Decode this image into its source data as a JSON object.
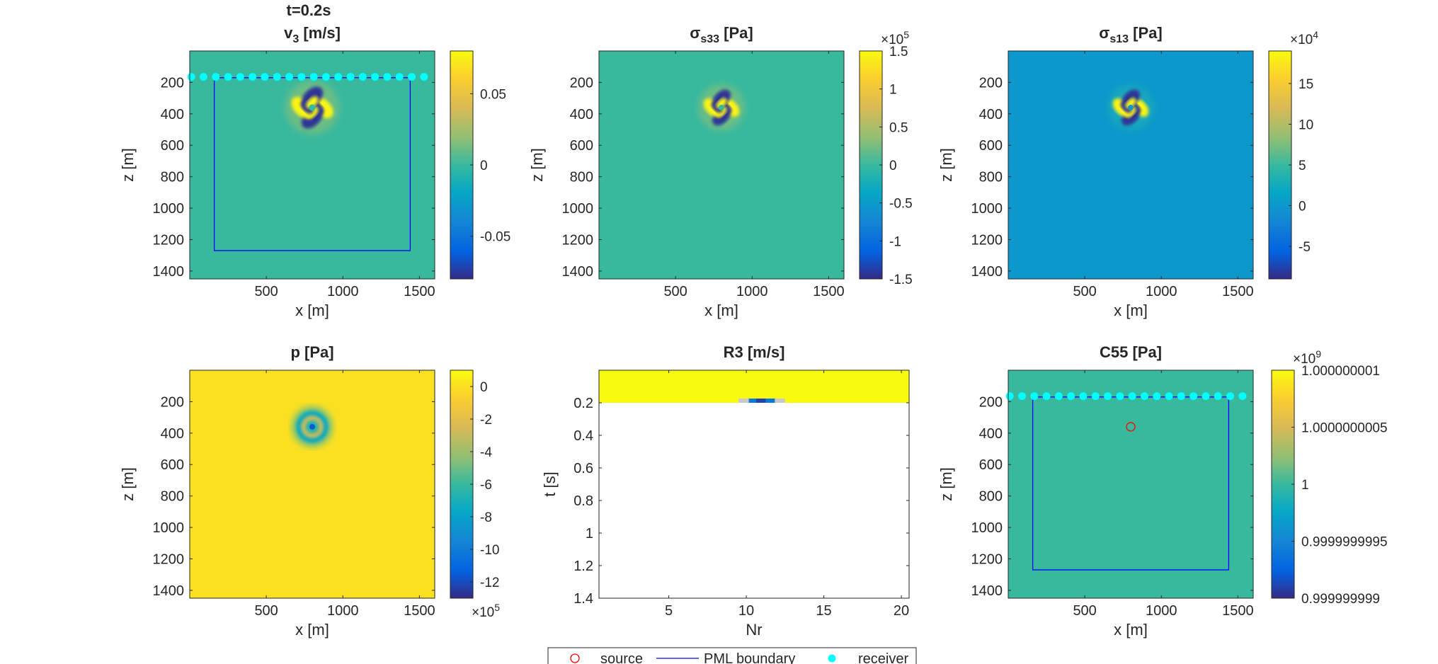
{
  "figure": {
    "time_label": "t=0.2s",
    "legend": {
      "items": [
        {
          "label": "source",
          "marker": "circle-open",
          "color": "#ff0000"
        },
        {
          "label": "PML boundary",
          "marker": "line",
          "color": "#0000ff"
        },
        {
          "label": "receiver",
          "marker": "circle-filled",
          "color": "#00ffff"
        }
      ]
    },
    "colormap": "parula",
    "colors": {
      "pml": "#0000ff",
      "receiver": "#00ffff",
      "source": "#ff0000"
    }
  },
  "chart_data": [
    {
      "type": "heatmap",
      "title_main": "v",
      "title_sub": "3",
      "title_rest": " [m/s]",
      "xlabel": "x [m]",
      "ylabel": "z [m]",
      "xlim": [
        0,
        1600
      ],
      "ylim": [
        0,
        1450
      ],
      "y_reversed": true,
      "xticks": [
        500,
        1000,
        1500
      ],
      "yticks": [
        200,
        400,
        600,
        800,
        1000,
        1200,
        1400
      ],
      "background_value": 0,
      "clim": [
        -0.08,
        0.08
      ],
      "colorbar_ticks": [
        {
          "value": 0.05,
          "label": "0.05"
        },
        {
          "value": 0,
          "label": "0"
        },
        {
          "value": -0.05,
          "label": "-0.05"
        }
      ],
      "colorbar_exponent": "",
      "pml_box": {
        "x": [
          160,
          1440
        ],
        "z": [
          170,
          1270
        ]
      },
      "receivers": {
        "z": 165,
        "x": [
          10,
          90,
          170,
          250,
          330,
          410,
          490,
          570,
          650,
          730,
          810,
          890,
          970,
          1050,
          1130,
          1210,
          1290,
          1370,
          1450,
          1530
        ]
      },
      "source": null,
      "wavefield": {
        "center": [
          800,
          360
        ],
        "pattern": "quadrupole",
        "max_radius": 175
      }
    },
    {
      "type": "heatmap",
      "title_main": "σ",
      "title_sub": "s33",
      "title_rest": " [Pa]",
      "xlabel": "x [m]",
      "ylabel": "z [m]",
      "xlim": [
        0,
        1600
      ],
      "ylim": [
        0,
        1450
      ],
      "y_reversed": true,
      "xticks": [
        500,
        1000,
        1500
      ],
      "yticks": [
        200,
        400,
        600,
        800,
        1000,
        1200,
        1400
      ],
      "background_value": 0,
      "clim": [
        -1.5,
        1.5
      ],
      "colorbar_ticks": [
        {
          "value": 1.5,
          "label": "1.5"
        },
        {
          "value": 1,
          "label": "1"
        },
        {
          "value": 0.5,
          "label": "0.5"
        },
        {
          "value": 0,
          "label": "0"
        },
        {
          "value": -0.5,
          "label": "-0.5"
        },
        {
          "value": -1,
          "label": "-1"
        },
        {
          "value": -1.5,
          "label": "-1.5"
        }
      ],
      "colorbar_exponent": "5",
      "pml_box": null,
      "receivers": null,
      "source": null,
      "wavefield": {
        "center": [
          800,
          360
        ],
        "pattern": "quadrupole",
        "max_radius": 150
      }
    },
    {
      "type": "heatmap",
      "title_main": "σ",
      "title_sub": "s13",
      "title_rest": " [Pa]",
      "xlabel": "x [m]",
      "ylabel": "z [m]",
      "xlim": [
        0,
        1600
      ],
      "ylim": [
        0,
        1450
      ],
      "y_reversed": true,
      "xticks": [
        500,
        1000,
        1500
      ],
      "yticks": [
        200,
        400,
        600,
        800,
        1000,
        1200,
        1400
      ],
      "background_value": 0,
      "clim": [
        -9,
        19
      ],
      "colorbar_ticks": [
        {
          "value": 15,
          "label": "15"
        },
        {
          "value": 10,
          "label": "10"
        },
        {
          "value": 5,
          "label": "5"
        },
        {
          "value": 0,
          "label": "0"
        },
        {
          "value": -5,
          "label": "-5"
        }
      ],
      "colorbar_exponent": "4",
      "pml_box": null,
      "receivers": null,
      "source": null,
      "wavefield": {
        "center": [
          800,
          360
        ],
        "pattern": "quadrupole",
        "max_radius": 150
      }
    },
    {
      "type": "heatmap",
      "title_main": "p [Pa]",
      "title_sub": "",
      "title_rest": "",
      "xlabel": "x [m]",
      "ylabel": "z [m]",
      "xlim": [
        0,
        1600
      ],
      "ylim": [
        0,
        1450
      ],
      "y_reversed": true,
      "xticks": [
        500,
        1000,
        1500
      ],
      "yticks": [
        200,
        400,
        600,
        800,
        1000,
        1200,
        1400
      ],
      "background_value": 0,
      "clim": [
        -13,
        1
      ],
      "colorbar_ticks": [
        {
          "value": 0,
          "label": "0"
        },
        {
          "value": -2,
          "label": "-2"
        },
        {
          "value": -4,
          "label": "-4"
        },
        {
          "value": -6,
          "label": "-6"
        },
        {
          "value": -8,
          "label": "-8"
        },
        {
          "value": -10,
          "label": "-10"
        },
        {
          "value": -12,
          "label": "-12"
        }
      ],
      "colorbar_exponent": "5",
      "colorbar_exponent_position": "bottom",
      "pml_box": null,
      "receivers": null,
      "source": null,
      "wavefield": {
        "center": [
          800,
          360
        ],
        "pattern": "rings",
        "max_radius": 130
      }
    },
    {
      "type": "heatmap",
      "title_main": "R3 [m/s]",
      "title_sub": "",
      "title_rest": "",
      "xlabel": "Nr",
      "ylabel": "t [s]",
      "xlim": [
        0.5,
        20.5
      ],
      "ylim": [
        0,
        1.4
      ],
      "y_reversed": true,
      "xticks": [
        5,
        10,
        15,
        20
      ],
      "yticks": [
        0.2,
        0.4,
        0.6,
        0.8,
        1,
        1.2,
        1.4
      ],
      "ytick_labels": [
        "0.2",
        "0.4",
        "0.6",
        "0.8",
        "1",
        "1.2",
        "1.4"
      ],
      "recorded_until": 0.2,
      "pulse_receivers": [
        9.5,
        12.5
      ],
      "pml_box": null,
      "receivers": null,
      "source": null
    },
    {
      "type": "heatmap",
      "title_main": "C55 [Pa]",
      "title_sub": "",
      "title_rest": "",
      "xlabel": "x [m]",
      "ylabel": "z [m]",
      "xlim": [
        0,
        1600
      ],
      "ylim": [
        0,
        1450
      ],
      "y_reversed": true,
      "xticks": [
        500,
        1000,
        1500
      ],
      "yticks": [
        200,
        400,
        600,
        800,
        1000,
        1200,
        1400
      ],
      "background_value": 1,
      "clim": [
        0.999999999,
        1.000000001
      ],
      "colorbar_ticks": [
        {
          "value": 1.000000001,
          "label": "1.000000001"
        },
        {
          "value": 1.0000000005,
          "label": "1.0000000005"
        },
        {
          "value": 1,
          "label": "1"
        },
        {
          "value": 0.9999999995,
          "label": "0.9999999995"
        },
        {
          "value": 0.999999999,
          "label": "0.999999999"
        }
      ],
      "colorbar_exponent": "9",
      "pml_box": {
        "x": [
          160,
          1440
        ],
        "z": [
          170,
          1270
        ]
      },
      "receivers": {
        "z": 165,
        "x": [
          10,
          90,
          170,
          250,
          330,
          410,
          490,
          570,
          650,
          730,
          810,
          890,
          970,
          1050,
          1130,
          1210,
          1290,
          1370,
          1450,
          1530
        ]
      },
      "source": {
        "x": 800,
        "z": 360
      },
      "wavefield": null
    }
  ]
}
